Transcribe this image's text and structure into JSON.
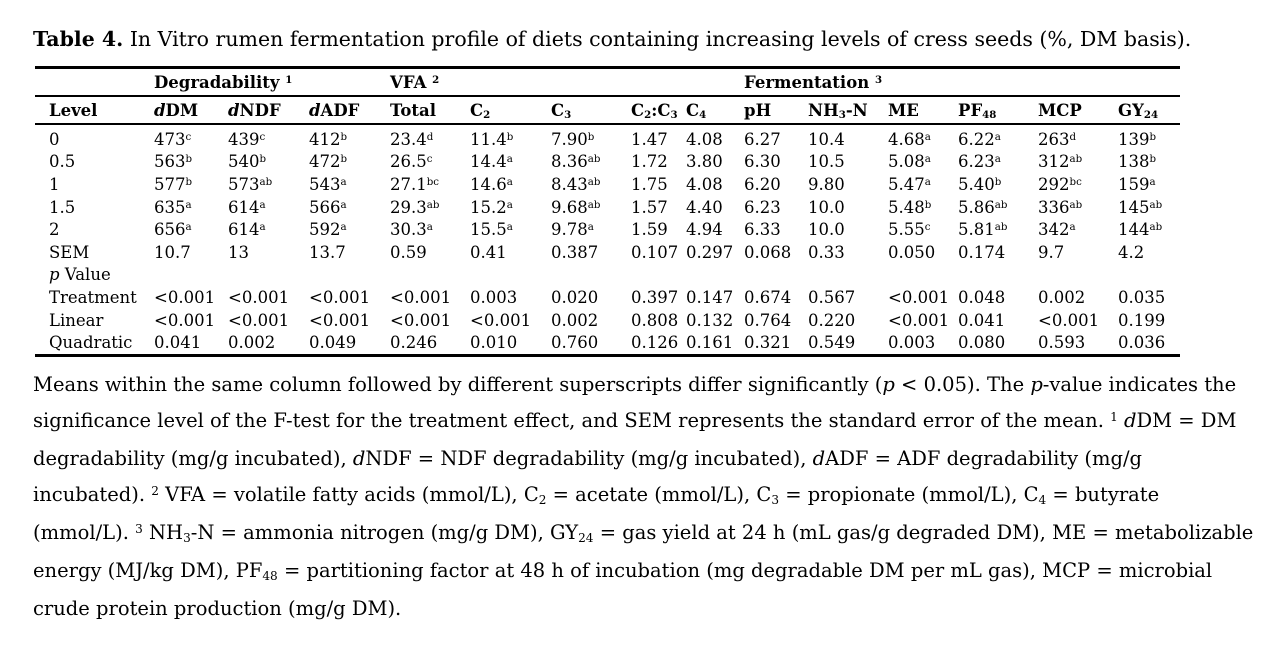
{
  "page": {
    "background": "#ffffff",
    "text_color": "#000000"
  },
  "title": {
    "label": "Table 4.",
    "text": "In Vitro rumen fermentation profile of diets containing increasing levels of cress seeds (%, DM basis)."
  },
  "table": {
    "group_headers": [
      {
        "label": "",
        "span": 1
      },
      {
        "label": "Degradability ^1^",
        "span": 3
      },
      {
        "label": "VFA ^2^",
        "span": 5
      },
      {
        "label": "Fermentation ^3^",
        "span": 6
      }
    ],
    "columns": [
      "Level",
      "*d*DM",
      "*d*NDF",
      "*d*ADF",
      "Total",
      "C~2~",
      "C~3~",
      "C~2~:C~3~",
      "C~4~",
      "pH",
      "NH~3~-N",
      "ME",
      "PF~48~",
      "MCP",
      "GY~24~"
    ],
    "rows": [
      [
        "0",
        "473^c^",
        "439^c^",
        "412^b^",
        "23.4^d^",
        "11.4^b^",
        "7.90^b^",
        "1.47",
        "4.08",
        "6.27",
        "10.4",
        "4.68^a^",
        "6.22^a^",
        "263^d^",
        "139^b^"
      ],
      [
        "0.5",
        "563^b^",
        "540^b^",
        "472^b^",
        "26.5^c^",
        "14.4^a^",
        "8.36^ab^",
        "1.72",
        "3.80",
        "6.30",
        "10.5",
        "5.08^a^",
        "6.23^a^",
        "312^ab^",
        "138^b^"
      ],
      [
        "1",
        "577^b^",
        "573^ab^",
        "543^a^",
        "27.1^bc^",
        "14.6^a^",
        "8.43^ab^",
        "1.75",
        "4.08",
        "6.20",
        "9.80",
        "5.47^a^",
        "5.40^b^",
        "292^bc^",
        "159^a^"
      ],
      [
        "1.5",
        "635^a^",
        "614^a^",
        "566^a^",
        "29.3^ab^",
        "15.2^a^",
        "9.68^ab^",
        "1.57",
        "4.40",
        "6.23",
        "10.0",
        "5.48^b^",
        "5.86^ab^",
        "336^ab^",
        "145^ab^"
      ],
      [
        "2",
        "656^a^",
        "614^a^",
        "592^a^",
        "30.3^a^",
        "15.5^a^",
        "9.78^a^",
        "1.59",
        "4.94",
        "6.33",
        "10.0",
        "5.55^c^",
        "5.81^ab^",
        "342^a^",
        "144^ab^"
      ],
      [
        "SEM",
        "10.7",
        "13",
        "13.7",
        "0.59",
        "0.41",
        "0.387",
        "0.107",
        "0.297",
        "0.068",
        "0.33",
        "0.050",
        "0.174",
        "9.7",
        "4.2"
      ],
      [
        "*p* Value",
        "",
        "",
        "",
        "",
        "",
        "",
        "",
        "",
        "",
        "",
        "",
        "",
        "",
        ""
      ],
      [
        "Treatment",
        "<0.001",
        "<0.001",
        "<0.001",
        "<0.001",
        "0.003",
        "0.020",
        "0.397",
        "0.147",
        "0.674",
        "0.567",
        "<0.001",
        "0.048",
        "0.002",
        "0.035"
      ],
      [
        "Linear",
        "<0.001",
        "<0.001",
        "<0.001",
        "<0.001",
        "<0.001",
        "0.002",
        "0.808",
        "0.132",
        "0.764",
        "0.220",
        "<0.001",
        "0.041",
        "<0.001",
        "0.199"
      ],
      [
        "Quadratic",
        "0.041",
        "0.002",
        "0.049",
        "0.246",
        "0.010",
        "0.760",
        "0.126",
        "0.161",
        "0.321",
        "0.549",
        "0.003",
        "0.080",
        "0.593",
        "0.036"
      ]
    ]
  },
  "footnote": "Means within the same column followed by different superscripts differ significantly (*p* < 0.05). The *p*-value indicates the significance level of the F-test for the treatment effect, and SEM represents the standard error of the mean. ^1^ *d*DM = DM degradability (mg/g incubated), *d*NDF = NDF degradability (mg/g incubated), *d*ADF = ADF degradability (mg/g incubated). ^2^ VFA = volatile fatty acids (mmol/L), C~2~ = acetate (mmol/L), C~3~ = propionate (mmol/L), C~4~ = butyrate (mmol/L). ^3^ NH~3~-N = ammonia nitrogen (mg/g DM), GY~24~ = gas yield at 24 h (mL gas/g degraded DM), ME = metabolizable energy (MJ/kg DM), PF~48~ = partitioning factor at 48 h of incubation (mg degradable DM per mL gas), MCP = microbial crude protein production (mg/g DM)."
}
